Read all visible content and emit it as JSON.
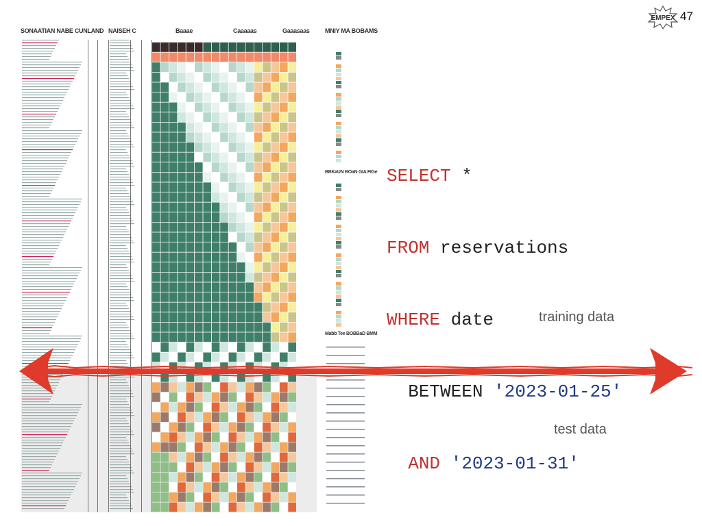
{
  "slide": {
    "page_number": "47",
    "logo_text": "EMPEX",
    "colors": {
      "arrow": "#e03a2a",
      "keyword": "#c0322f",
      "string": "#1f3b86"
    }
  },
  "sheet": {
    "headers": [
      "SONAATIAN NABE CUNLAND",
      "NAISEH C",
      "Baaae",
      "Caaaaas",
      "Gaaasaas",
      "MNIY MA BOBAMS"
    ],
    "side_headers": [
      "BBKaUN BOaN GIA FIGe",
      "Mabb Tee BOBBaD BMM"
    ]
  },
  "sql": {
    "line1": {
      "kw": "SELECT",
      "rest": " *"
    },
    "line2": {
      "kw": "FROM",
      "rest": " reservations"
    },
    "line3": {
      "kw": "WHERE",
      "rest": " date"
    },
    "line4": {
      "plain": "  BETWEEN ",
      "str": "'2023-01-25'"
    },
    "line5": {
      "indent": "  ",
      "kw": "AND",
      "str": " '2023-01-31'"
    }
  },
  "labels": {
    "training": "training data",
    "test": "test data"
  }
}
